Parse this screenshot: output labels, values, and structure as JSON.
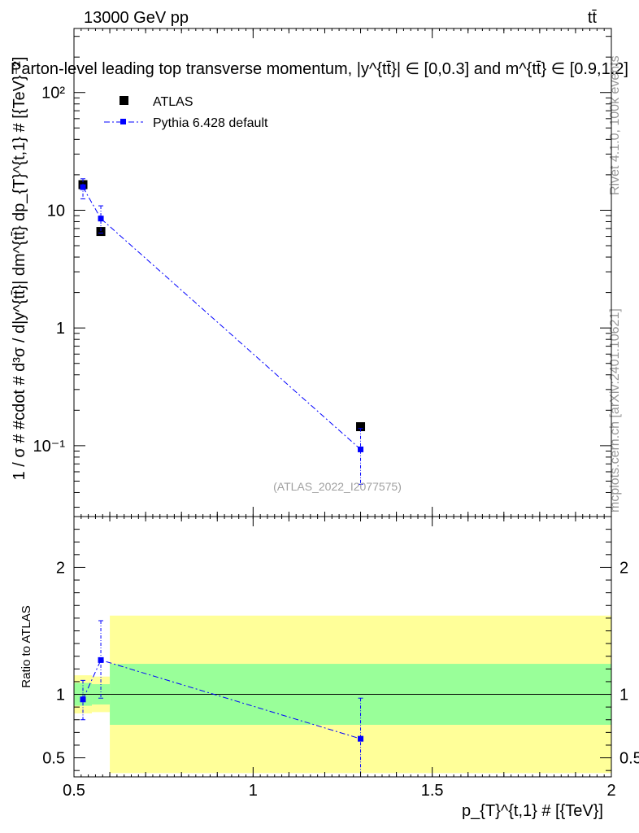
{
  "header": {
    "energy_label": "13000 GeV pp",
    "process_label": "tt̄",
    "title": "Parton-level leading top transverse momentum, |y^{tt̄}| ∈ [0,0.3] and m^{tt̄} ∈ [0.9,1.2]"
  },
  "side_labels": {
    "rivet": "Rivet 4.1.0,  100k events",
    "mcplots": "mcplots.cern.ch [arXiv:2401.10621]"
  },
  "watermark": "(ATLAS_2022_I2077575)",
  "colors": {
    "atlas": "#000000",
    "pythia": "#0000ff",
    "band_outer": "#ffff99",
    "band_inner": "#99ff99"
  },
  "chart_data": [
    {
      "type": "scatter",
      "panel": "main",
      "yscale": "log",
      "ylabel": "1 / σ # #cdot # d³σ / d|y^{tt̄}| dm^{tt̄} dp_{T}^{t,1} # [{TeV}⁻²]",
      "xlim": [
        0.5,
        2.0
      ],
      "ylim": [
        0.025,
        350
      ],
      "y_ticks": [
        {
          "value": 100,
          "label": "10²"
        },
        {
          "value": 10,
          "label": "10"
        },
        {
          "value": 1,
          "label": "1"
        },
        {
          "value": 0.1,
          "label": "10⁻¹"
        }
      ],
      "legend_position": "top-left",
      "series": [
        {
          "name": "ATLAS",
          "style": "black-square",
          "points": [
            {
              "x": 0.525,
              "y": 16.5
            },
            {
              "x": 0.575,
              "y": 6.6
            },
            {
              "x": 1.3,
              "y": 0.145
            }
          ]
        },
        {
          "name": "Pythia 6.428 default",
          "style": "blue-dashdot",
          "points": [
            {
              "x": 0.525,
              "y": 15.7,
              "err_lo": 12.5,
              "err_hi": 18.5
            },
            {
              "x": 0.575,
              "y": 8.5,
              "err_lo": 6.4,
              "err_hi": 10.9
            },
            {
              "x": 1.3,
              "y": 0.093,
              "err_lo": 0.047,
              "err_hi": 0.14
            }
          ]
        }
      ]
    },
    {
      "type": "scatter",
      "panel": "ratio",
      "ylabel": "Ratio to ATLAS",
      "xlabel": "p_{T}^{t,1} # [{TeV}]",
      "xlim": [
        0.5,
        2.0
      ],
      "ylim": [
        0.35,
        2.4
      ],
      "x_ticks": [
        {
          "value": 0.5,
          "label": "0.5"
        },
        {
          "value": 1,
          "label": "1"
        },
        {
          "value": 1.5,
          "label": "1.5"
        },
        {
          "value": 2,
          "label": "2"
        }
      ],
      "y_ticks": [
        {
          "value": 0.5,
          "label": "0.5"
        },
        {
          "value": 1,
          "label": "1"
        },
        {
          "value": 2,
          "label": "2"
        }
      ],
      "bands": [
        {
          "x0": 0.5,
          "x1": 0.55,
          "inner": [
            0.91,
            1.09
          ],
          "outer": [
            0.85,
            1.15
          ]
        },
        {
          "x0": 0.55,
          "x1": 0.6,
          "inner": [
            0.92,
            1.08
          ],
          "outer": [
            0.86,
            1.14
          ]
        },
        {
          "x0": 0.6,
          "x1": 2.0,
          "inner": [
            0.76,
            1.24
          ],
          "outer": [
            0.38,
            1.62
          ]
        }
      ],
      "series": [
        {
          "name": "Pythia 6.428 default",
          "points": [
            {
              "x": 0.525,
              "y": 0.96,
              "err_lo": 0.8,
              "err_hi": 1.11
            },
            {
              "x": 0.575,
              "y": 1.27,
              "err_lo": 0.97,
              "err_hi": 1.58
            },
            {
              "x": 1.3,
              "y": 0.65,
              "err_lo": 0.35,
              "err_hi": 0.97
            }
          ]
        }
      ]
    }
  ]
}
